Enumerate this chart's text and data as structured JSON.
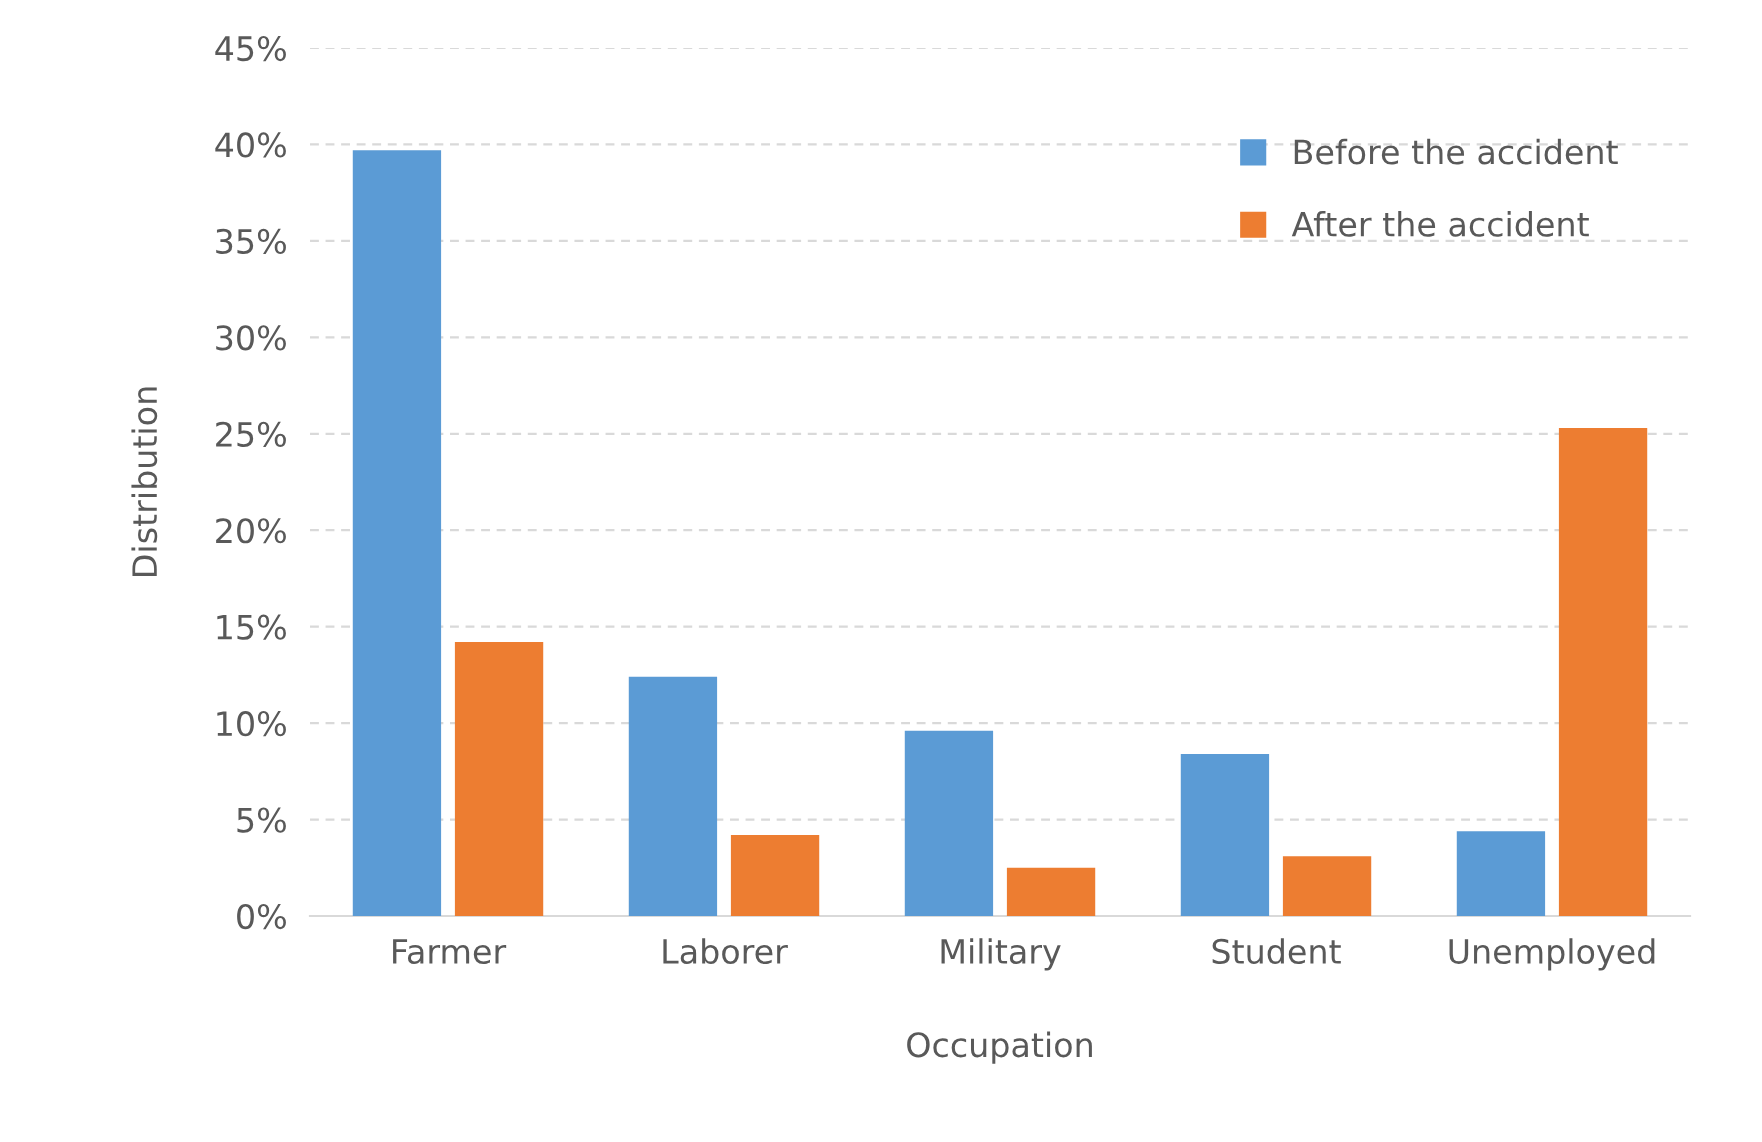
{
  "chart_data": {
    "type": "bar",
    "xlabel": "Occupation",
    "ylabel": "Distribution",
    "categories": [
      "Farmer",
      "Laborer",
      "Military",
      "Student",
      "Unemployed"
    ],
    "series": [
      {
        "name": "Before the accident",
        "color": "#5b9bd5",
        "values": [
          39.7,
          12.4,
          9.6,
          8.4,
          4.4
        ]
      },
      {
        "name": "After the accident",
        "color": "#ed7d31",
        "values": [
          14.2,
          4.2,
          2.5,
          3.1,
          25.3
        ]
      }
    ],
    "ylim": [
      0,
      45
    ],
    "yticks": [
      {
        "value": 0,
        "label": "0%"
      },
      {
        "value": 5,
        "label": "5%"
      },
      {
        "value": 10,
        "label": "10%"
      },
      {
        "value": 15,
        "label": "15%"
      },
      {
        "value": 20,
        "label": "20%"
      },
      {
        "value": 25,
        "label": "25%"
      },
      {
        "value": 30,
        "label": "30%"
      },
      {
        "value": 35,
        "label": "35%"
      },
      {
        "value": 40,
        "label": "40%"
      },
      {
        "value": 45,
        "label": "45%"
      }
    ],
    "grid": "y",
    "legend": "top right"
  }
}
